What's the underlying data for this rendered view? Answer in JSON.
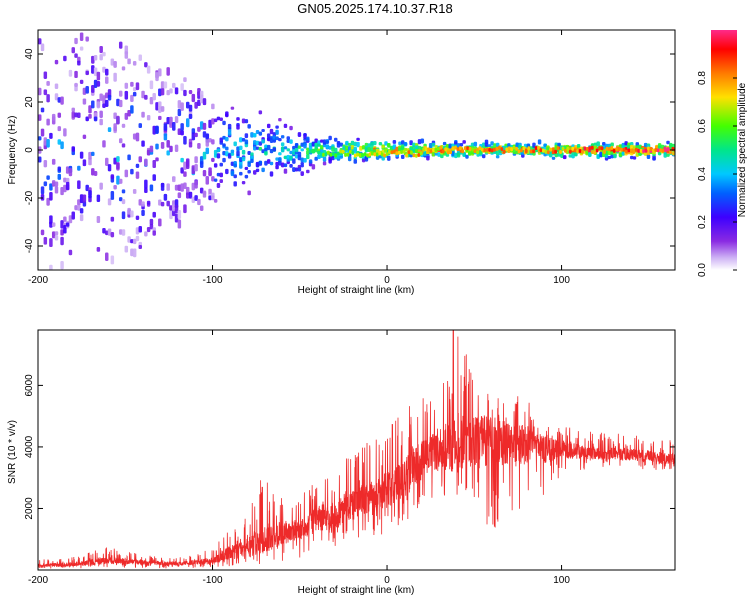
{
  "figure": {
    "title": "GN05.2025.174.10.37.R18"
  },
  "colors": {
    "snr_line": "#ee2a2a",
    "colormap": [
      "#ffffff",
      "#cfb4f5",
      "#8a2be2",
      "#3d00ff",
      "#0050ff",
      "#00c8ff",
      "#00e68a",
      "#44ff00",
      "#ffe000",
      "#ff7a00",
      "#ff0000",
      "#ff2a8a"
    ]
  },
  "chart_data": [
    {
      "type": "heatmap",
      "xlabel": "Height of straight line (km)",
      "ylabel": "Frequency (Hz)",
      "xlim": [
        -200,
        165
      ],
      "ylim": [
        -50,
        50
      ],
      "xticks": [
        -200,
        -100,
        0,
        100
      ],
      "yticks": [
        -40,
        -20,
        0,
        20,
        40
      ],
      "colorbar": {
        "label": "Normalized spectral amplitude",
        "range": [
          0,
          1
        ],
        "ticks": [
          0.0,
          0.2,
          0.4,
          0.6,
          0.8
        ]
      },
      "description_points": [
        {
          "x": -200,
          "spread_hz": 50,
          "peak": 0.35
        },
        {
          "x": -150,
          "spread_hz": 45,
          "peak": 0.4
        },
        {
          "x": -100,
          "spread_hz": 22,
          "peak": 0.45
        },
        {
          "x": -60,
          "spread_hz": 12,
          "peak": 0.5
        },
        {
          "x": -40,
          "spread_hz": 6,
          "peak": 0.6
        },
        {
          "x": 0,
          "spread_hz": 4,
          "peak": 0.8
        },
        {
          "x": 50,
          "spread_hz": 3,
          "peak": 0.85
        },
        {
          "x": 100,
          "spread_hz": 3,
          "peak": 0.9
        },
        {
          "x": 165,
          "spread_hz": 3,
          "peak": 1.0
        }
      ]
    },
    {
      "type": "line",
      "xlabel": "Height of straight line (km)",
      "ylabel": "SNR (10 * v/v)",
      "xlim": [
        -200,
        165
      ],
      "ylim": [
        0,
        7800
      ],
      "xticks": [
        -200,
        -100,
        0,
        100
      ],
      "yticks": [
        2000,
        4000,
        6000
      ],
      "series": [
        {
          "x": [
            -200,
            -180,
            -160,
            -140,
            -120,
            -100,
            -90,
            -80,
            -72,
            -60,
            -50,
            -40,
            -30,
            -20,
            -10,
            0,
            10,
            20,
            30,
            40,
            50,
            60,
            70,
            80,
            85,
            90,
            100,
            120,
            140,
            165
          ],
          "y": [
            150,
            180,
            300,
            250,
            200,
            300,
            550,
            750,
            1000,
            1200,
            1300,
            1650,
            1800,
            2200,
            2300,
            2600,
            3000,
            3600,
            3900,
            4100,
            4200,
            4200,
            4100,
            4050,
            4200,
            3900,
            3900,
            3800,
            3750,
            3600
          ],
          "spike_y": [
            400,
            420,
            800,
            500,
            400,
            700,
            1400,
            1800,
            3000,
            2500,
            2400,
            3000,
            3600,
            3800,
            4200,
            4600,
            5200,
            5800,
            6000,
            7800,
            6400,
            5800,
            5400,
            6000,
            4800,
            4600,
            4800,
            4500,
            4400,
            4200
          ],
          "dip_y": [
            50,
            50,
            80,
            60,
            50,
            80,
            100,
            150,
            200,
            300,
            400,
            600,
            700,
            900,
            1000,
            1200,
            1500,
            2000,
            2200,
            2000,
            1800,
            900,
            1500,
            2200,
            3000,
            2000,
            3200,
            3300,
            3300,
            3200
          ]
        }
      ]
    }
  ]
}
